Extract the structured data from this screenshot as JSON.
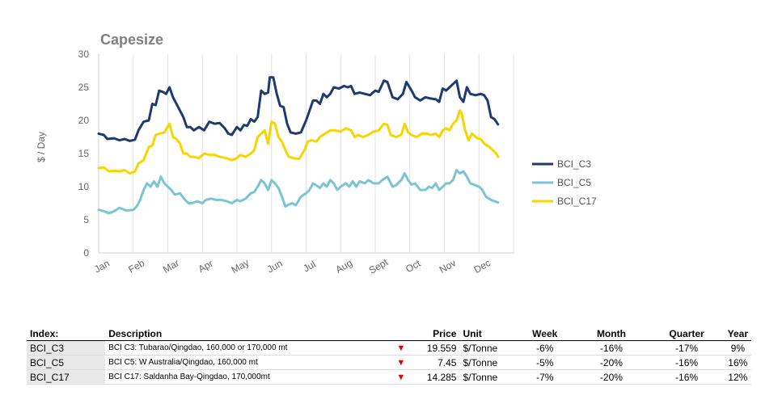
{
  "chart_data": {
    "type": "line",
    "title": "Capesize",
    "ylabel": "$ / Day",
    "xlabel": "",
    "ylim": [
      0,
      30
    ],
    "yticks": [
      0,
      5,
      10,
      15,
      20,
      25,
      30
    ],
    "xlim": [
      0,
      12
    ],
    "xticks": [
      {
        "label": "Jan",
        "pos": 0
      },
      {
        "label": "Feb",
        "pos": 1
      },
      {
        "label": "Mar",
        "pos": 2
      },
      {
        "label": "Apr",
        "pos": 3
      },
      {
        "label": "May",
        "pos": 4
      },
      {
        "label": "Jun",
        "pos": 5
      },
      {
        "label": "Jul",
        "pos": 6
      },
      {
        "label": "Aug",
        "pos": 7
      },
      {
        "label": "Sept",
        "pos": 8
      },
      {
        "label": "Oct",
        "pos": 9
      },
      {
        "label": "Nov",
        "pos": 10
      },
      {
        "label": "Dec",
        "pos": 11
      }
    ],
    "grid": "vertical",
    "legend": "right",
    "series": [
      {
        "name": "BCI_C3",
        "color": "#1f3a6e",
        "points": [
          [
            0,
            18
          ],
          [
            0.15,
            17.8
          ],
          [
            0.25,
            17.2
          ],
          [
            0.45,
            17.3
          ],
          [
            0.6,
            17
          ],
          [
            0.75,
            17.2
          ],
          [
            0.9,
            16.9
          ],
          [
            1.05,
            17.1
          ],
          [
            1.15,
            18.5
          ],
          [
            1.3,
            19.8
          ],
          [
            1.45,
            20
          ],
          [
            1.55,
            22.5
          ],
          [
            1.65,
            22.3
          ],
          [
            1.75,
            24.5
          ],
          [
            1.85,
            24.3
          ],
          [
            1.95,
            24
          ],
          [
            2.05,
            25
          ],
          [
            2.15,
            23.5
          ],
          [
            2.3,
            22
          ],
          [
            2.45,
            20.5
          ],
          [
            2.55,
            19
          ],
          [
            2.65,
            19
          ],
          [
            2.75,
            18.5
          ],
          [
            2.9,
            19
          ],
          [
            3.05,
            18.5
          ],
          [
            3.2,
            19.8
          ],
          [
            3.35,
            19.5
          ],
          [
            3.5,
            19.6
          ],
          [
            3.65,
            18.8
          ],
          [
            3.75,
            18
          ],
          [
            3.85,
            17.8
          ],
          [
            4.0,
            19
          ],
          [
            4.1,
            18.5
          ],
          [
            4.2,
            19.3
          ],
          [
            4.3,
            19.2
          ],
          [
            4.4,
            20.2
          ],
          [
            4.5,
            19.8
          ],
          [
            4.6,
            20.5
          ],
          [
            4.7,
            24.5
          ],
          [
            4.8,
            24
          ],
          [
            4.9,
            24.2
          ],
          [
            4.95,
            26.5
          ],
          [
            5.05,
            26.5
          ],
          [
            5.15,
            24
          ],
          [
            5.25,
            22.2
          ],
          [
            5.35,
            22
          ],
          [
            5.45,
            19.5
          ],
          [
            5.55,
            18.2
          ],
          [
            5.7,
            18
          ],
          [
            5.85,
            18.2
          ],
          [
            6.0,
            20
          ],
          [
            6.1,
            21.5
          ],
          [
            6.2,
            23
          ],
          [
            6.3,
            23
          ],
          [
            6.4,
            22.5
          ],
          [
            6.5,
            24
          ],
          [
            6.6,
            23.5
          ],
          [
            6.7,
            24
          ],
          [
            6.8,
            25
          ],
          [
            6.95,
            24.8
          ],
          [
            7.1,
            25.2
          ],
          [
            7.2,
            25
          ],
          [
            7.3,
            25.2
          ],
          [
            7.4,
            24
          ],
          [
            7.55,
            24.2
          ],
          [
            7.7,
            24
          ],
          [
            7.85,
            23.8
          ],
          [
            8.0,
            24.5
          ],
          [
            8.1,
            24.3
          ],
          [
            8.25,
            26
          ],
          [
            8.35,
            25.8
          ],
          [
            8.5,
            23.5
          ],
          [
            8.65,
            23.2
          ],
          [
            8.8,
            24
          ],
          [
            8.9,
            25.8
          ],
          [
            9.05,
            24.5
          ],
          [
            9.15,
            23.5
          ],
          [
            9.3,
            23
          ],
          [
            9.45,
            23.5
          ],
          [
            9.6,
            23.3
          ],
          [
            9.75,
            23.2
          ],
          [
            9.85,
            22.8
          ],
          [
            9.95,
            24.8
          ],
          [
            10.05,
            24.5
          ],
          [
            10.15,
            25
          ],
          [
            10.25,
            25.5
          ],
          [
            10.35,
            26
          ],
          [
            10.45,
            23.5
          ],
          [
            10.55,
            22.8
          ],
          [
            10.65,
            25
          ],
          [
            10.75,
            24
          ],
          [
            10.9,
            23.8
          ],
          [
            11.05,
            24
          ],
          [
            11.15,
            23.8
          ],
          [
            11.25,
            23
          ],
          [
            11.35,
            20.5
          ],
          [
            11.45,
            20.2
          ],
          [
            11.55,
            19.4
          ]
        ]
      },
      {
        "name": "BCI_C5",
        "color": "#7cc4d4",
        "points": [
          [
            0,
            6.5
          ],
          [
            0.15,
            6.3
          ],
          [
            0.3,
            6
          ],
          [
            0.45,
            6.3
          ],
          [
            0.6,
            6.8
          ],
          [
            0.8,
            6.4
          ],
          [
            1.0,
            6.5
          ],
          [
            1.1,
            7
          ],
          [
            1.2,
            8
          ],
          [
            1.3,
            9.5
          ],
          [
            1.4,
            10.5
          ],
          [
            1.5,
            10
          ],
          [
            1.6,
            10.8
          ],
          [
            1.7,
            10
          ],
          [
            1.8,
            11.5
          ],
          [
            1.9,
            10.5
          ],
          [
            2.0,
            10
          ],
          [
            2.1,
            9.5
          ],
          [
            2.2,
            8.8
          ],
          [
            2.35,
            9
          ],
          [
            2.5,
            8
          ],
          [
            2.6,
            7.5
          ],
          [
            2.7,
            7.5
          ],
          [
            2.85,
            7.8
          ],
          [
            3.0,
            7.5
          ],
          [
            3.1,
            8
          ],
          [
            3.25,
            8.2
          ],
          [
            3.4,
            8
          ],
          [
            3.55,
            8
          ],
          [
            3.7,
            7.8
          ],
          [
            3.85,
            7.5
          ],
          [
            4.0,
            8
          ],
          [
            4.1,
            7.8
          ],
          [
            4.25,
            8.2
          ],
          [
            4.4,
            9
          ],
          [
            4.5,
            9.2
          ],
          [
            4.6,
            10
          ],
          [
            4.7,
            11
          ],
          [
            4.8,
            10.5
          ],
          [
            4.9,
            9.5
          ],
          [
            5.0,
            11
          ],
          [
            5.1,
            10.5
          ],
          [
            5.2,
            9.8
          ],
          [
            5.3,
            8.5
          ],
          [
            5.4,
            7
          ],
          [
            5.5,
            7.3
          ],
          [
            5.6,
            7.5
          ],
          [
            5.7,
            7.2
          ],
          [
            5.85,
            8.5
          ],
          [
            6.0,
            9
          ],
          [
            6.1,
            9.5
          ],
          [
            6.2,
            10.5
          ],
          [
            6.3,
            10.2
          ],
          [
            6.4,
            9.8
          ],
          [
            6.5,
            10.5
          ],
          [
            6.6,
            10
          ],
          [
            6.7,
            11
          ],
          [
            6.8,
            10.5
          ],
          [
            6.9,
            9.5
          ],
          [
            7.0,
            10
          ],
          [
            7.15,
            10.5
          ],
          [
            7.25,
            10
          ],
          [
            7.35,
            10.8
          ],
          [
            7.45,
            10
          ],
          [
            7.55,
            10.8
          ],
          [
            7.7,
            10.5
          ],
          [
            7.8,
            11
          ],
          [
            7.95,
            10.5
          ],
          [
            8.1,
            10.5
          ],
          [
            8.2,
            11
          ],
          [
            8.35,
            11.5
          ],
          [
            8.5,
            10
          ],
          [
            8.6,
            10.2
          ],
          [
            8.75,
            11
          ],
          [
            8.85,
            12
          ],
          [
            8.95,
            11
          ],
          [
            9.05,
            10.3
          ],
          [
            9.15,
            10.5
          ],
          [
            9.3,
            9.5
          ],
          [
            9.45,
            9.5
          ],
          [
            9.55,
            10
          ],
          [
            9.65,
            9.8
          ],
          [
            9.75,
            10.5
          ],
          [
            9.85,
            9.5
          ],
          [
            9.95,
            10
          ],
          [
            10.05,
            10.5
          ],
          [
            10.15,
            10.5
          ],
          [
            10.25,
            11
          ],
          [
            10.35,
            12.5
          ],
          [
            10.45,
            12
          ],
          [
            10.55,
            12.3
          ],
          [
            10.65,
            11.5
          ],
          [
            10.75,
            10.5
          ],
          [
            10.85,
            10.3
          ],
          [
            11.0,
            10
          ],
          [
            11.1,
            9.5
          ],
          [
            11.2,
            8.5
          ],
          [
            11.35,
            8
          ],
          [
            11.45,
            7.8
          ],
          [
            11.55,
            7.6
          ]
        ]
      },
      {
        "name": "BCI_C17",
        "color": "#f6d500",
        "points": [
          [
            0,
            12.8
          ],
          [
            0.15,
            12.9
          ],
          [
            0.3,
            12.3
          ],
          [
            0.45,
            12.4
          ],
          [
            0.6,
            12.3
          ],
          [
            0.75,
            12.5
          ],
          [
            0.9,
            12
          ],
          [
            1.05,
            12.3
          ],
          [
            1.15,
            13.5
          ],
          [
            1.3,
            14
          ],
          [
            1.45,
            16
          ],
          [
            1.55,
            16.2
          ],
          [
            1.65,
            17.8
          ],
          [
            1.75,
            18
          ],
          [
            1.9,
            18.2
          ],
          [
            2.05,
            19.5
          ],
          [
            2.15,
            17.5
          ],
          [
            2.25,
            17.2
          ],
          [
            2.35,
            16.5
          ],
          [
            2.45,
            15
          ],
          [
            2.55,
            15
          ],
          [
            2.65,
            14.5
          ],
          [
            2.75,
            14.5
          ],
          [
            2.9,
            14.3
          ],
          [
            3.05,
            15
          ],
          [
            3.2,
            14.8
          ],
          [
            3.35,
            14.8
          ],
          [
            3.5,
            14.5
          ],
          [
            3.7,
            14.3
          ],
          [
            3.85,
            14
          ],
          [
            4.0,
            14.3
          ],
          [
            4.1,
            14.8
          ],
          [
            4.25,
            14.5
          ],
          [
            4.4,
            15
          ],
          [
            4.5,
            15.5
          ],
          [
            4.6,
            17.5
          ],
          [
            4.7,
            18
          ],
          [
            4.8,
            18.5
          ],
          [
            4.9,
            16.5
          ],
          [
            5.0,
            19.8
          ],
          [
            5.1,
            19.5
          ],
          [
            5.2,
            17.5
          ],
          [
            5.3,
            16.8
          ],
          [
            5.4,
            15.5
          ],
          [
            5.5,
            14.5
          ],
          [
            5.65,
            14.3
          ],
          [
            5.8,
            14.2
          ],
          [
            5.95,
            15.5
          ],
          [
            6.05,
            16.8
          ],
          [
            6.15,
            17
          ],
          [
            6.3,
            16.8
          ],
          [
            6.4,
            17.5
          ],
          [
            6.55,
            18
          ],
          [
            6.7,
            18.5
          ],
          [
            6.85,
            18.5
          ],
          [
            7.0,
            18.3
          ],
          [
            7.15,
            18.8
          ],
          [
            7.3,
            18.5
          ],
          [
            7.4,
            17.5
          ],
          [
            7.5,
            17.8
          ],
          [
            7.65,
            17.5
          ],
          [
            7.8,
            17.8
          ],
          [
            7.95,
            18.3
          ],
          [
            8.1,
            18.5
          ],
          [
            8.25,
            19.5
          ],
          [
            8.35,
            19.3
          ],
          [
            8.45,
            17.8
          ],
          [
            8.6,
            17.5
          ],
          [
            8.75,
            17.8
          ],
          [
            8.85,
            19.5
          ],
          [
            8.95,
            18.2
          ],
          [
            9.05,
            17.8
          ],
          [
            9.2,
            17.5
          ],
          [
            9.35,
            18
          ],
          [
            9.5,
            18
          ],
          [
            9.6,
            17.8
          ],
          [
            9.75,
            18
          ],
          [
            9.85,
            17.5
          ],
          [
            9.95,
            18.5
          ],
          [
            10.05,
            18.8
          ],
          [
            10.15,
            18.5
          ],
          [
            10.25,
            19.5
          ],
          [
            10.35,
            20
          ],
          [
            10.45,
            21.5
          ],
          [
            10.5,
            21
          ],
          [
            10.6,
            18.5
          ],
          [
            10.7,
            17
          ],
          [
            10.8,
            18
          ],
          [
            10.95,
            17.3
          ],
          [
            11.05,
            17.2
          ],
          [
            11.15,
            16.5
          ],
          [
            11.3,
            16
          ],
          [
            11.4,
            15.5
          ],
          [
            11.5,
            15
          ],
          [
            11.55,
            14.5
          ]
        ]
      }
    ]
  },
  "table": {
    "headers": {
      "index": "Index:",
      "description": "Description",
      "price": "Price",
      "unit": "Unit",
      "week": "Week",
      "month": "Month",
      "quarter": "Quarter",
      "year": "Year"
    },
    "rows": [
      {
        "index": "BCI_C3",
        "description": "BCI C3: Tubarao/Qingdao, 160,000 or 170,000 mt",
        "arrow": "▼",
        "price": "19.559",
        "unit": "$/Tonne",
        "week": "-6%",
        "month": "-16%",
        "quarter": "-17%",
        "year": "9%"
      },
      {
        "index": "BCI_C5",
        "description": "BCI C5: W Australia/Qingdao, 160,000 mt",
        "arrow": "▼",
        "price": "7.45",
        "unit": "$/Tonne",
        "week": "-5%",
        "month": "-20%",
        "quarter": "-16%",
        "year": "16%"
      },
      {
        "index": "BCI_C17",
        "description": "BCI C17: Saldanha Bay-Qingdao, 170,000mt",
        "arrow": "▼",
        "price": "14.285",
        "unit": "$/Tonne",
        "week": "-7%",
        "month": "-20%",
        "quarter": "-16%",
        "year": "12%"
      }
    ]
  }
}
